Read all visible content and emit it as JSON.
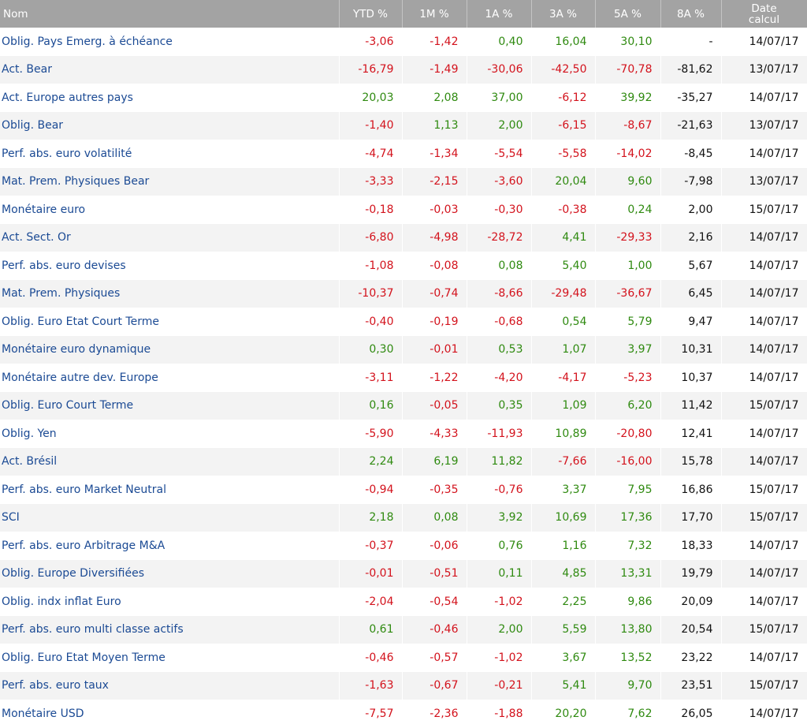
{
  "table": {
    "header": [
      "Nom",
      "YTD %",
      "1M %",
      "1A %",
      "3A %",
      "5A %",
      "8A %",
      "Date\ncalcul"
    ],
    "rows": [
      [
        "Oblig. Pays Emerg. à échéance",
        "-3,06",
        "-1,42",
        "0,40",
        "16,04",
        "30,10",
        "-",
        "14/07/17"
      ],
      [
        "Act. Bear",
        "-16,79",
        "-1,49",
        "-30,06",
        "-42,50",
        "-70,78",
        "-81,62",
        "13/07/17"
      ],
      [
        "Act. Europe autres pays",
        "20,03",
        "2,08",
        "37,00",
        "-6,12",
        "39,92",
        "-35,27",
        "14/07/17"
      ],
      [
        "Oblig. Bear",
        "-1,40",
        "1,13",
        "2,00",
        "-6,15",
        "-8,67",
        "-21,63",
        "13/07/17"
      ],
      [
        "Perf. abs. euro volatilité",
        "-4,74",
        "-1,34",
        "-5,54",
        "-5,58",
        "-14,02",
        "-8,45",
        "14/07/17"
      ],
      [
        "Mat. Prem. Physiques Bear",
        "-3,33",
        "-2,15",
        "-3,60",
        "20,04",
        "9,60",
        "-7,98",
        "13/07/17"
      ],
      [
        "Monétaire euro",
        "-0,18",
        "-0,03",
        "-0,30",
        "-0,38",
        "0,24",
        "2,00",
        "15/07/17"
      ],
      [
        "Act. Sect. Or",
        "-6,80",
        "-4,98",
        "-28,72",
        "4,41",
        "-29,33",
        "2,16",
        "14/07/17"
      ],
      [
        "Perf. abs. euro devises",
        "-1,08",
        "-0,08",
        "0,08",
        "5,40",
        "1,00",
        "5,67",
        "14/07/17"
      ],
      [
        "Mat. Prem. Physiques",
        "-10,37",
        "-0,74",
        "-8,66",
        "-29,48",
        "-36,67",
        "6,45",
        "14/07/17"
      ],
      [
        "Oblig. Euro Etat Court Terme",
        "-0,40",
        "-0,19",
        "-0,68",
        "0,54",
        "5,79",
        "9,47",
        "14/07/17"
      ],
      [
        "Monétaire euro dynamique",
        "0,30",
        "-0,01",
        "0,53",
        "1,07",
        "3,97",
        "10,31",
        "14/07/17"
      ],
      [
        "Monétaire autre dev. Europe",
        "-3,11",
        "-1,22",
        "-4,20",
        "-4,17",
        "-5,23",
        "10,37",
        "14/07/17"
      ],
      [
        "Oblig. Euro Court Terme",
        "0,16",
        "-0,05",
        "0,35",
        "1,09",
        "6,20",
        "11,42",
        "15/07/17"
      ],
      [
        "Oblig. Yen",
        "-5,90",
        "-4,33",
        "-11,93",
        "10,89",
        "-20,80",
        "12,41",
        "14/07/17"
      ],
      [
        "Act. Brésil",
        "2,24",
        "6,19",
        "11,82",
        "-7,66",
        "-16,00",
        "15,78",
        "14/07/17"
      ],
      [
        "Perf. abs. euro Market Neutral",
        "-0,94",
        "-0,35",
        "-0,76",
        "3,37",
        "7,95",
        "16,86",
        "15/07/17"
      ],
      [
        "SCI",
        "2,18",
        "0,08",
        "3,92",
        "10,69",
        "17,36",
        "17,70",
        "15/07/17"
      ],
      [
        "Perf. abs. euro Arbitrage M&A",
        "-0,37",
        "-0,06",
        "0,76",
        "1,16",
        "7,32",
        "18,33",
        "14/07/17"
      ],
      [
        "Oblig. Europe Diversifiées",
        "-0,01",
        "-0,51",
        "0,11",
        "4,85",
        "13,31",
        "19,79",
        "14/07/17"
      ],
      [
        "Oblig. indx inflat Euro",
        "-2,04",
        "-0,54",
        "-1,02",
        "2,25",
        "9,86",
        "20,09",
        "14/07/17"
      ],
      [
        "Perf. abs. euro multi classe actifs",
        "0,61",
        "-0,46",
        "2,00",
        "5,59",
        "13,80",
        "20,54",
        "15/07/17"
      ],
      [
        "Oblig. Euro Etat Moyen Terme",
        "-0,46",
        "-0,57",
        "-1,02",
        "3,67",
        "13,52",
        "23,22",
        "14/07/17"
      ],
      [
        "Perf. abs. euro taux",
        "-1,63",
        "-0,67",
        "-0,21",
        "5,41",
        "9,70",
        "23,51",
        "15/07/17"
      ],
      [
        "Monétaire USD",
        "-7,57",
        "-2,36",
        "-1,88",
        "20,20",
        "7,62",
        "26,05",
        "14/07/17"
      ]
    ]
  }
}
